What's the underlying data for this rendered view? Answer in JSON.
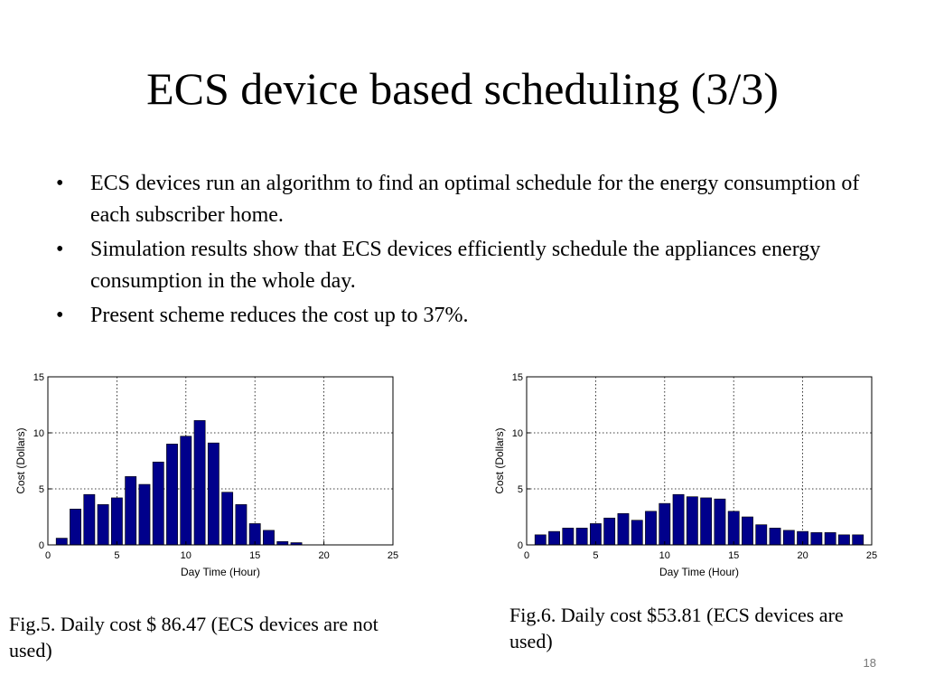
{
  "slide": {
    "title": "ECS device based scheduling (3/3)",
    "bullets": [
      "ECS devices run an algorithm to find an optimal schedule for the energy consumption of each subscriber home.",
      "Simulation results show that ECS devices efficiently schedule the appliances energy consumption in the whole day.",
      "Present scheme reduces the cost up to 37%."
    ],
    "bullet_symbol": "•",
    "captions": [
      "Fig.5.  Daily cost $ 86.47 (ECS devices are not used)",
      "Fig.6. Daily cost $53.81 (ECS devices are used)"
    ],
    "page_number": "18"
  },
  "chart_data": [
    {
      "type": "bar",
      "title": "",
      "xlabel": "Day Time (Hour)",
      "ylabel": "Cost (Dollars)",
      "xlim": [
        0,
        25
      ],
      "ylim": [
        0,
        15
      ],
      "xticks": [
        0,
        5,
        10,
        15,
        20,
        25
      ],
      "yticks": [
        0,
        5,
        10,
        15
      ],
      "grid": true,
      "bar_color": "#00008B",
      "x": [
        1,
        2,
        3,
        4,
        5,
        6,
        7,
        8,
        9,
        10,
        11,
        12,
        13,
        14,
        15,
        16,
        17,
        18,
        19,
        20,
        21,
        22,
        23,
        24
      ],
      "values": [
        0.6,
        3.2,
        4.5,
        3.6,
        4.2,
        6.1,
        5.4,
        7.4,
        9.0,
        9.7,
        11.1,
        9.1,
        4.7,
        3.6,
        1.9,
        1.3,
        0.3,
        0.2,
        0,
        0,
        0,
        0,
        0,
        0
      ]
    },
    {
      "type": "bar",
      "title": "",
      "xlabel": "Day Time (Hour)",
      "ylabel": "Cost (Dollars)",
      "xlim": [
        0,
        25
      ],
      "ylim": [
        0,
        15
      ],
      "xticks": [
        0,
        5,
        10,
        15,
        20,
        25
      ],
      "yticks": [
        0,
        5,
        10,
        15
      ],
      "grid": true,
      "bar_color": "#00008B",
      "x": [
        1,
        2,
        3,
        4,
        5,
        6,
        7,
        8,
        9,
        10,
        11,
        12,
        13,
        14,
        15,
        16,
        17,
        18,
        19,
        20,
        21,
        22,
        23,
        24
      ],
      "values": [
        0.9,
        1.2,
        1.5,
        1.5,
        1.9,
        2.4,
        2.8,
        2.2,
        3.0,
        3.7,
        4.5,
        4.3,
        4.2,
        4.1,
        3.0,
        2.5,
        1.8,
        1.5,
        1.3,
        1.2,
        1.1,
        1.1,
        0.9,
        0.9
      ]
    }
  ]
}
